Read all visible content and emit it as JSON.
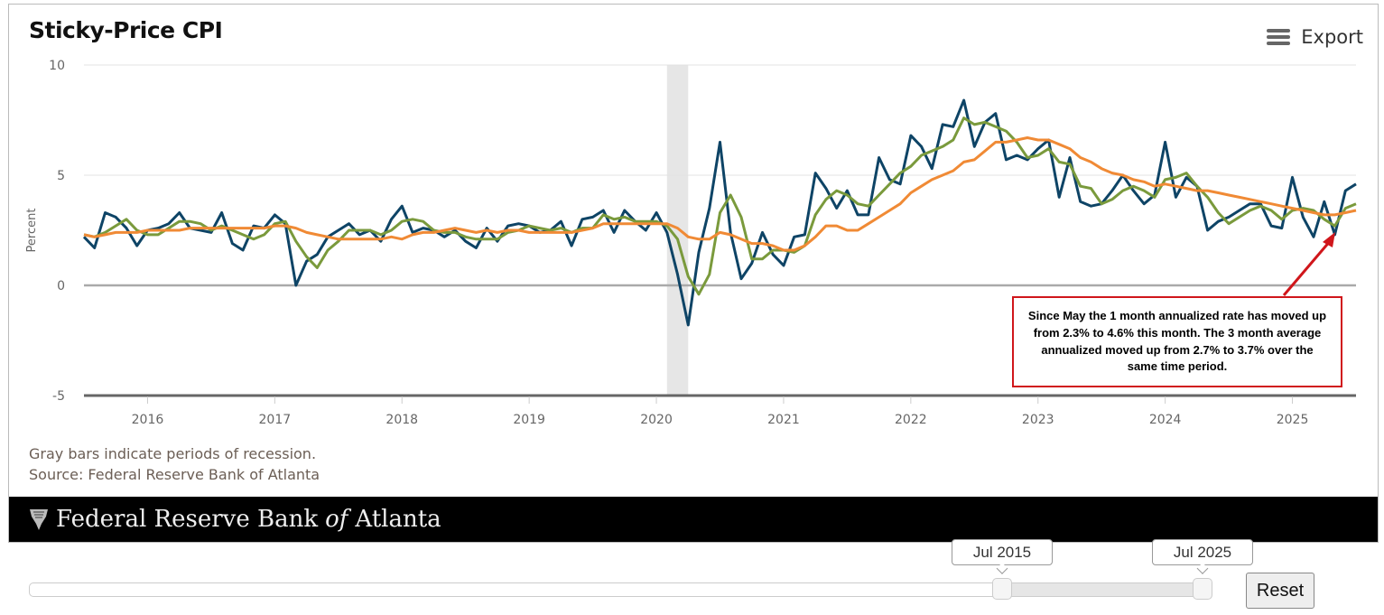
{
  "header": {
    "title": "Sticky-Price CPI",
    "export_label": "Export",
    "export_icon": "hamburger-menu-icon"
  },
  "notes": {
    "recession": "Gray bars indicate periods of recession.",
    "source": "Source: Federal Reserve Bank of Atlanta"
  },
  "footer": {
    "brand_main": "Federal Reserve Bank",
    "brand_of": "of",
    "brand_city": "Atlanta",
    "logo_icon": "eagle-shield-icon"
  },
  "annotation": {
    "text": "Since May the 1 month annualized rate has moved up from 2.3% to 4.6% this month. The 3 month average annualized moved up from 2.7% to 3.7% over the same time period.",
    "color": "#d0161b"
  },
  "range_selector": {
    "start": "Jul 2015",
    "end": "Jul 2025",
    "reset_label": "Reset"
  },
  "chart_data": {
    "type": "line",
    "title": "Sticky-Price CPI",
    "ylabel": "Percent",
    "xlabel": "",
    "start_month": "Jul 2015",
    "end_month": "Jul 2025",
    "frequency": "monthly",
    "ylim": [
      -5,
      10
    ],
    "yticks": [
      "10",
      "5",
      "0",
      "-5"
    ],
    "xticks": [
      "2016",
      "2017",
      "2018",
      "2019",
      "2020",
      "2021",
      "2022",
      "2023",
      "2024",
      "2025"
    ],
    "grid": true,
    "recessions": [
      {
        "start": "Feb 2020",
        "end": "Apr 2020",
        "color": "#e6e6e6"
      }
    ],
    "series": [
      {
        "color": "#0e4466",
        "values": [
          2.2,
          1.7,
          3.3,
          3.1,
          2.6,
          1.8,
          2.5,
          2.6,
          2.8,
          3.3,
          2.6,
          2.5,
          2.4,
          3.3,
          1.9,
          1.6,
          2.7,
          2.6,
          3.2,
          2.8,
          0.0,
          1.1,
          1.4,
          2.2,
          2.5,
          2.8,
          2.3,
          2.5,
          2.0,
          3.0,
          3.6,
          2.4,
          2.6,
          2.5,
          2.2,
          2.5,
          2.0,
          1.7,
          2.6,
          2.0,
          2.7,
          2.8,
          2.7,
          2.4,
          2.5,
          2.9,
          1.8,
          3.0,
          3.1,
          3.4,
          2.4,
          3.4,
          2.9,
          2.5,
          3.3,
          2.4,
          0.5,
          -1.8,
          1.5,
          3.5,
          6.5,
          2.4,
          0.3,
          1.0,
          2.4,
          1.4,
          0.9,
          2.2,
          2.3,
          5.1,
          4.4,
          3.5,
          4.3,
          3.2,
          3.2,
          5.8,
          4.8,
          4.6,
          6.8,
          6.3,
          5.3,
          7.3,
          7.2,
          8.4,
          6.3,
          7.4,
          7.8,
          5.7,
          5.9,
          5.7,
          6.2,
          6.6,
          4.0,
          5.8,
          3.8,
          3.6,
          3.7,
          4.3,
          5.0,
          4.3,
          3.7,
          4.1,
          6.5,
          4.0,
          4.9,
          4.5,
          2.5,
          2.9,
          3.1,
          3.4,
          3.7,
          3.7,
          2.7,
          2.6,
          4.9,
          3.1,
          2.2,
          3.8,
          2.3,
          4.3,
          4.6
        ]
      },
      {
        "color": "#7a9a3c",
        "values": [
          2.3,
          2.2,
          2.4,
          2.7,
          3.0,
          2.5,
          2.3,
          2.3,
          2.6,
          2.9,
          2.9,
          2.8,
          2.5,
          2.7,
          2.5,
          2.3,
          2.1,
          2.3,
          2.8,
          2.9,
          2.0,
          1.3,
          0.8,
          1.6,
          2.0,
          2.5,
          2.5,
          2.5,
          2.3,
          2.5,
          2.9,
          3.0,
          2.9,
          2.5,
          2.4,
          2.4,
          2.2,
          2.1,
          2.1,
          2.1,
          2.4,
          2.5,
          2.7,
          2.6,
          2.5,
          2.6,
          2.4,
          2.6,
          2.6,
          3.2,
          3.0,
          3.1,
          2.9,
          2.9,
          2.9,
          2.7,
          2.1,
          0.4,
          -0.4,
          0.5,
          3.3,
          4.1,
          3.1,
          1.2,
          1.2,
          1.6,
          1.6,
          1.5,
          1.8,
          3.2,
          3.9,
          4.3,
          4.1,
          3.7,
          3.6,
          4.1,
          4.6,
          5.1,
          5.4,
          5.9,
          6.1,
          6.3,
          6.6,
          7.6,
          7.3,
          7.4,
          7.2,
          7.0,
          6.5,
          5.8,
          5.9,
          6.2,
          5.6,
          5.5,
          4.5,
          4.4,
          3.7,
          3.9,
          4.3,
          4.5,
          4.3,
          4.0,
          4.8,
          4.9,
          5.1,
          4.5,
          4.0,
          3.3,
          2.8,
          3.1,
          3.4,
          3.6,
          3.4,
          3.0,
          3.4,
          3.5,
          3.4,
          3.0,
          2.7,
          3.5,
          3.7
        ]
      },
      {
        "color": "#f08a35",
        "values": [
          2.3,
          2.2,
          2.3,
          2.4,
          2.4,
          2.4,
          2.5,
          2.5,
          2.5,
          2.5,
          2.6,
          2.6,
          2.6,
          2.6,
          2.6,
          2.6,
          2.6,
          2.6,
          2.7,
          2.7,
          2.6,
          2.4,
          2.3,
          2.2,
          2.1,
          2.1,
          2.1,
          2.1,
          2.1,
          2.2,
          2.1,
          2.3,
          2.4,
          2.4,
          2.5,
          2.6,
          2.5,
          2.4,
          2.5,
          2.4,
          2.5,
          2.5,
          2.4,
          2.4,
          2.4,
          2.4,
          2.4,
          2.5,
          2.6,
          2.8,
          2.8,
          2.8,
          2.8,
          2.8,
          2.8,
          2.8,
          2.6,
          2.2,
          2.1,
          2.1,
          2.4,
          2.3,
          2.1,
          1.9,
          1.9,
          1.8,
          1.6,
          1.6,
          1.8,
          2.2,
          2.7,
          2.7,
          2.5,
          2.5,
          2.8,
          3.1,
          3.4,
          3.7,
          4.2,
          4.5,
          4.8,
          5.0,
          5.2,
          5.6,
          5.7,
          6.1,
          6.5,
          6.5,
          6.6,
          6.7,
          6.6,
          6.6,
          6.4,
          6.2,
          5.8,
          5.6,
          5.3,
          5.1,
          5.0,
          4.8,
          4.7,
          4.5,
          4.6,
          4.5,
          4.4,
          4.3,
          4.3,
          4.2,
          4.1,
          4.0,
          3.9,
          3.8,
          3.7,
          3.6,
          3.5,
          3.4,
          3.3,
          3.2,
          3.2,
          3.3,
          3.4
        ]
      }
    ]
  }
}
